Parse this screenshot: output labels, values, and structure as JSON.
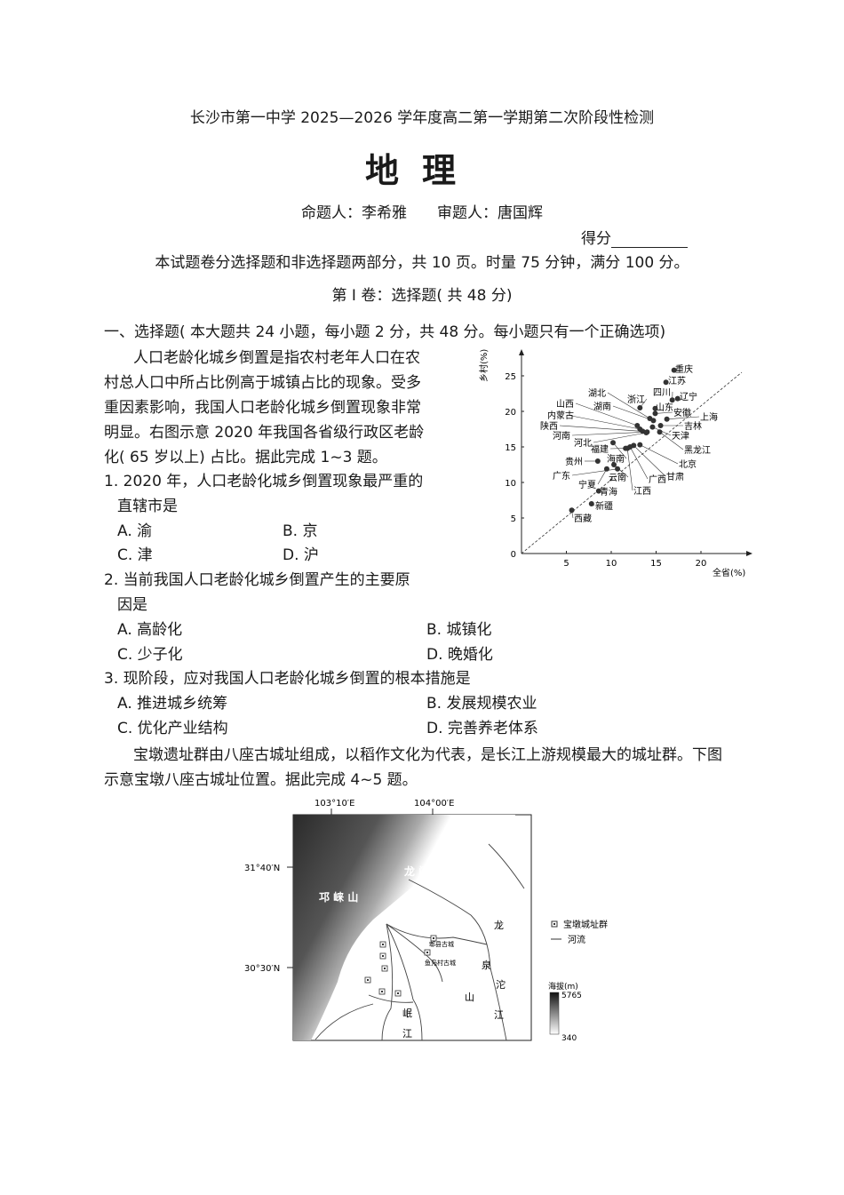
{
  "header": {
    "school_title": "长沙市第一中学 2025—2026 学年度高二第一学期第二次阶段性检测",
    "subject": "地理",
    "authors": "命题人：李希雅　　审题人：唐国辉",
    "score_label": "得分",
    "instructions": "本试题卷分选择题和非选择题两部分，共 10 页。时量 75 分钟，满分 100 分。",
    "part_title": "第 Ⅰ 卷：选择题( 共 48 分)"
  },
  "section": {
    "title": "一、选择题( 本大题共 24 小题，每小题 2 分，共 48 分。每小题只有一个正确选项)",
    "passage1": [
      "人口老龄化城乡倒置是指农村老年人口在农",
      "村总人口中所占比例高于城镇占比的现象。受多",
      "重因素影响，我国人口老龄化城乡倒置现象非常",
      "明显。右图示意 2020 年我国各省级行政区老龄",
      "化( 65 岁以上) 占比。据此完成 1~3 题。"
    ],
    "questions": [
      {
        "stem": [
          "1. 2020 年，人口老龄化城乡倒置现象最严重的",
          "直辖市是"
        ],
        "options": [
          "A. 渝",
          "B. 京",
          "C. 津",
          "D. 沪"
        ]
      },
      {
        "stem": [
          "2. 当前我国人口老龄化城乡倒置产生的主要原",
          "因是"
        ],
        "options": [
          "A. 高龄化",
          "B. 城镇化",
          "C. 少子化",
          "D. 晚婚化"
        ]
      },
      {
        "stem": [
          "3. 现阶段，应对我国人口老龄化城乡倒置的根本措施是"
        ],
        "options": [
          "A. 推进城乡统筹",
          "B. 发展规模农业",
          "C. 优化产业结构",
          "D. 完善养老体系"
        ]
      }
    ],
    "passage2": [
      "宝墩遗址群由八座古城址组成，以稻作文化为代表，是长江上游规模最大的城址群。下图",
      "示意宝墩八座古城址位置。据此完成 4~5 题。"
    ]
  },
  "chart_data": {
    "type": "scatter",
    "xlabel": "全省(%)",
    "ylabel": "乡村(%)",
    "xlim": [
      0,
      25
    ],
    "ylim": [
      0,
      28
    ],
    "xticks": [
      "5",
      "10",
      "15",
      "20"
    ],
    "yticks": [
      "0",
      "5",
      "10",
      "15",
      "20",
      "25"
    ],
    "reference_line": "y = x (dashed)",
    "points": [
      {
        "name": "重庆",
        "x": 17.0,
        "y": 25.8
      },
      {
        "name": "江苏",
        "x": 16.1,
        "y": 24.1
      },
      {
        "name": "四川",
        "x": 16.8,
        "y": 21.6
      },
      {
        "name": "辽宁",
        "x": 17.4,
        "y": 21.8
      },
      {
        "name": "浙江",
        "x": 13.2,
        "y": 20.5
      },
      {
        "name": "山东",
        "x": 14.9,
        "y": 20.4
      },
      {
        "name": "安徽",
        "x": 14.9,
        "y": 19.7
      },
      {
        "name": "上海",
        "x": 16.2,
        "y": 18.9
      },
      {
        "name": "湖北",
        "x": 14.3,
        "y": 19.0
      },
      {
        "name": "湖南",
        "x": 14.7,
        "y": 18.7
      },
      {
        "name": "吉林",
        "x": 15.5,
        "y": 18.0
      },
      {
        "name": "山西",
        "x": 12.9,
        "y": 18.0
      },
      {
        "name": "内蒙古",
        "x": 13.2,
        "y": 17.5
      },
      {
        "name": "陕西",
        "x": 13.5,
        "y": 17.2
      },
      {
        "name": "河南",
        "x": 14.0,
        "y": 17.1
      },
      {
        "name": "天津",
        "x": 14.6,
        "y": 17.8
      },
      {
        "name": "黑龙江",
        "x": 15.4,
        "y": 17.1
      },
      {
        "name": "河北",
        "x": 13.9,
        "y": 17.0
      },
      {
        "name": "福建",
        "x": 11.6,
        "y": 14.8
      },
      {
        "name": "北京",
        "x": 13.2,
        "y": 15.3
      },
      {
        "name": "甘肃",
        "x": 12.5,
        "y": 15.2
      },
      {
        "name": "广西",
        "x": 12.1,
        "y": 15.0
      },
      {
        "name": "江西",
        "x": 11.8,
        "y": 14.8
      },
      {
        "name": "海南",
        "x": 10.2,
        "y": 15.6
      },
      {
        "name": "贵州",
        "x": 8.5,
        "y": 13.0
      },
      {
        "name": "云南",
        "x": 10.3,
        "y": 12.5
      },
      {
        "name": "宁夏",
        "x": 9.5,
        "y": 11.9
      },
      {
        "name": "广东",
        "x": 10.7,
        "y": 11.9
      },
      {
        "name": "青海",
        "x": 8.6,
        "y": 8.8
      },
      {
        "name": "新疆",
        "x": 7.8,
        "y": 7.0
      },
      {
        "name": "西藏",
        "x": 5.6,
        "y": 6.1
      }
    ]
  },
  "map": {
    "lon_labels": [
      "103°10′E",
      "104°00′E"
    ],
    "lat_labels": [
      "31°40′N",
      "30°30′N"
    ],
    "place_labels": {
      "qionglai": "邛 崃 山",
      "longmen": "龙 门 山",
      "pixian": "郫县古城",
      "yufu": "鱼凫村古城",
      "longquan": [
        "龙",
        "泉",
        "山"
      ],
      "tuojiang": [
        "沱",
        "江"
      ],
      "minjiang": [
        "岷",
        "江"
      ]
    },
    "legend": {
      "site": "宝墩城址群",
      "river": "河流",
      "elevation_title": "海拔(m)",
      "elev_max": "5765",
      "elev_min": "340"
    }
  }
}
